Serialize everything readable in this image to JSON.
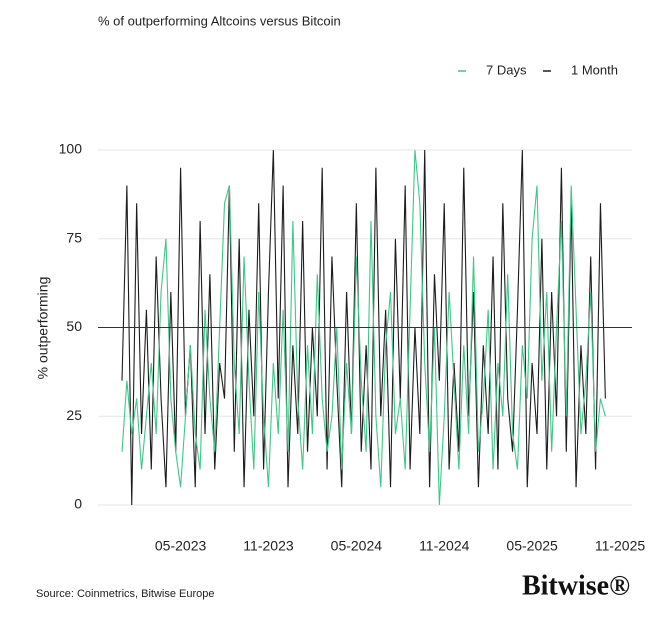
{
  "chart_data": {
    "type": "line",
    "title": "% of outperforming Altcoins versus Bitcoin",
    "y_label": "% outperforming",
    "source": "Source: Coinmetrics, Bitwise Europe",
    "brand": "Bitwise®",
    "categories": [
      null,
      null,
      null,
      null,
      null,
      null,
      null,
      null,
      null,
      null,
      null,
      null,
      "05-2023",
      null,
      null,
      null,
      null,
      null,
      null,
      null,
      null,
      null,
      null,
      null,
      null,
      null,
      null,
      null,
      null,
      null,
      "11-2023",
      null,
      null,
      null,
      null,
      null,
      null,
      null,
      null,
      null,
      null,
      null,
      null,
      null,
      null,
      null,
      null,
      null,
      "05-2024",
      null,
      null,
      null,
      null,
      null,
      null,
      null,
      null,
      null,
      null,
      null,
      null,
      null,
      null,
      null,
      null,
      null,
      "11-2024",
      null,
      null,
      null,
      null,
      null,
      null,
      null,
      null,
      null,
      null,
      null,
      null,
      null,
      null,
      null,
      null,
      null,
      "05-2025",
      null,
      null,
      null,
      null,
      null,
      null,
      null,
      null,
      null,
      null,
      null,
      null,
      null,
      null,
      null,
      null,
      null,
      "11-2025"
    ],
    "series": [
      {
        "name": "7 Days",
        "color": "#3fc68a",
        "values": [
          15,
          35,
          20,
          30,
          10,
          25,
          40,
          20,
          60,
          75,
          30,
          15,
          5,
          25,
          45,
          20,
          10,
          55,
          30,
          15,
          50,
          85,
          90,
          40,
          20,
          70,
          35,
          10,
          60,
          25,
          5,
          40,
          20,
          55,
          15,
          80,
          30,
          10,
          45,
          20,
          65,
          30,
          15,
          25,
          50,
          10,
          40,
          20,
          70,
          35,
          15,
          80,
          25,
          5,
          45,
          60,
          20,
          30,
          10,
          55,
          100,
          85,
          40,
          15,
          50,
          0,
          25,
          60,
          35,
          10,
          45,
          20,
          70,
          15,
          30,
          55,
          10,
          40,
          25,
          65,
          20,
          10,
          45,
          30,
          75,
          90,
          35,
          60,
          15,
          50,
          80,
          25,
          90,
          55,
          20,
          35,
          60,
          15,
          30,
          25,
          null,
          null,
          null
        ]
      },
      {
        "name": "1 Month",
        "color": "#1c1c1c",
        "values": [
          35,
          90,
          0,
          85,
          20,
          55,
          10,
          70,
          30,
          5,
          60,
          15,
          95,
          25,
          45,
          5,
          80,
          20,
          65,
          10,
          40,
          30,
          90,
          15,
          75,
          5,
          55,
          25,
          85,
          10,
          60,
          100,
          30,
          90,
          5,
          45,
          20,
          80,
          15,
          50,
          25,
          95,
          10,
          70,
          35,
          5,
          60,
          20,
          85,
          15,
          45,
          10,
          95,
          25,
          55,
          5,
          75,
          30,
          90,
          10,
          50,
          20,
          100,
          5,
          65,
          35,
          85,
          10,
          40,
          15,
          95,
          25,
          60,
          5,
          45,
          20,
          70,
          10,
          85,
          30,
          15,
          55,
          100,
          5,
          40,
          20,
          75,
          10,
          60,
          25,
          95,
          15,
          85,
          5,
          45,
          20,
          70,
          10,
          85,
          30,
          null,
          null,
          null
        ]
      }
    ],
    "ylim": [
      0,
      100
    ],
    "yticks": [
      0,
      25,
      50,
      75,
      100
    ],
    "grid": true,
    "hline": 50,
    "legend": "top-right"
  }
}
